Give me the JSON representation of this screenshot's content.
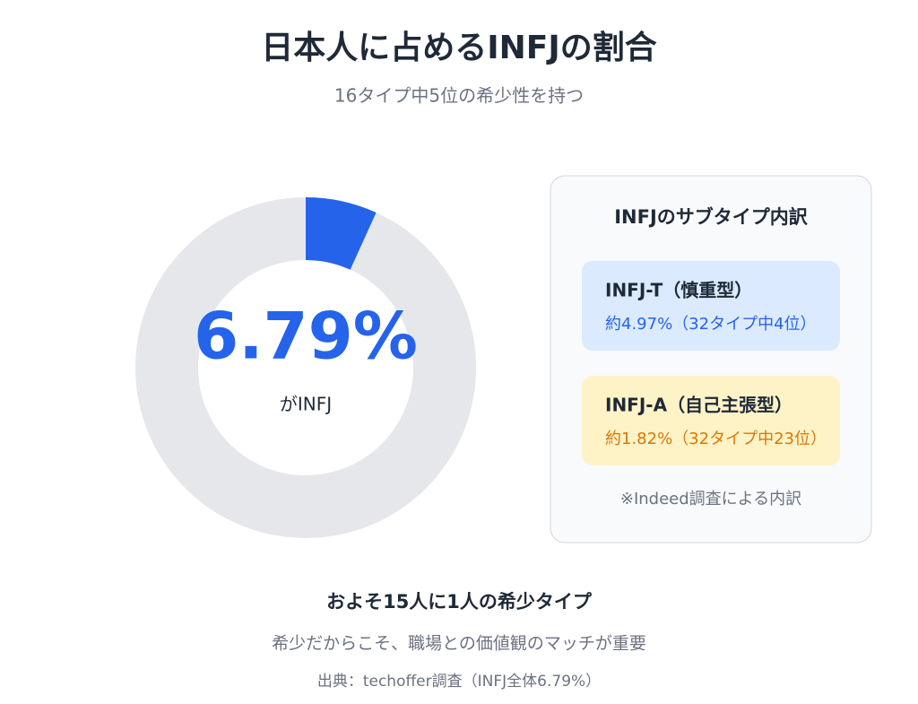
{
  "chart_data": {
    "type": "donut",
    "title": "日本人に占めるINFJの割合",
    "subtitle": "16タイプ中5位の希少性を持つ",
    "values": [
      6.79
    ],
    "value_labels": [
      "6.79%"
    ],
    "center_caption": "がINFJ",
    "color": "#2563eb",
    "track_color": "#e5e7eb"
  },
  "panel": {
    "title": "INFJのサブタイプ内訳",
    "items": [
      {
        "name": "INFJ-T（慎重型）",
        "detail": "約4.97%（32タイプ中4位）",
        "color": "#2563eb",
        "background": "#dbeafe"
      },
      {
        "name": "INFJ-A（自己主張型）",
        "detail": "約1.82%（32タイプ中23位）",
        "color": "#d97706",
        "background": "#fef3c7"
      }
    ],
    "note": "※Indeed調査による内訳"
  },
  "footer": {
    "headline": "およそ15人に1人の希少タイプ",
    "text": "希少だからこそ、職場との価値観のマッチが重要",
    "source": "出典：techoffer調査（INFJ全体6.79%）"
  }
}
